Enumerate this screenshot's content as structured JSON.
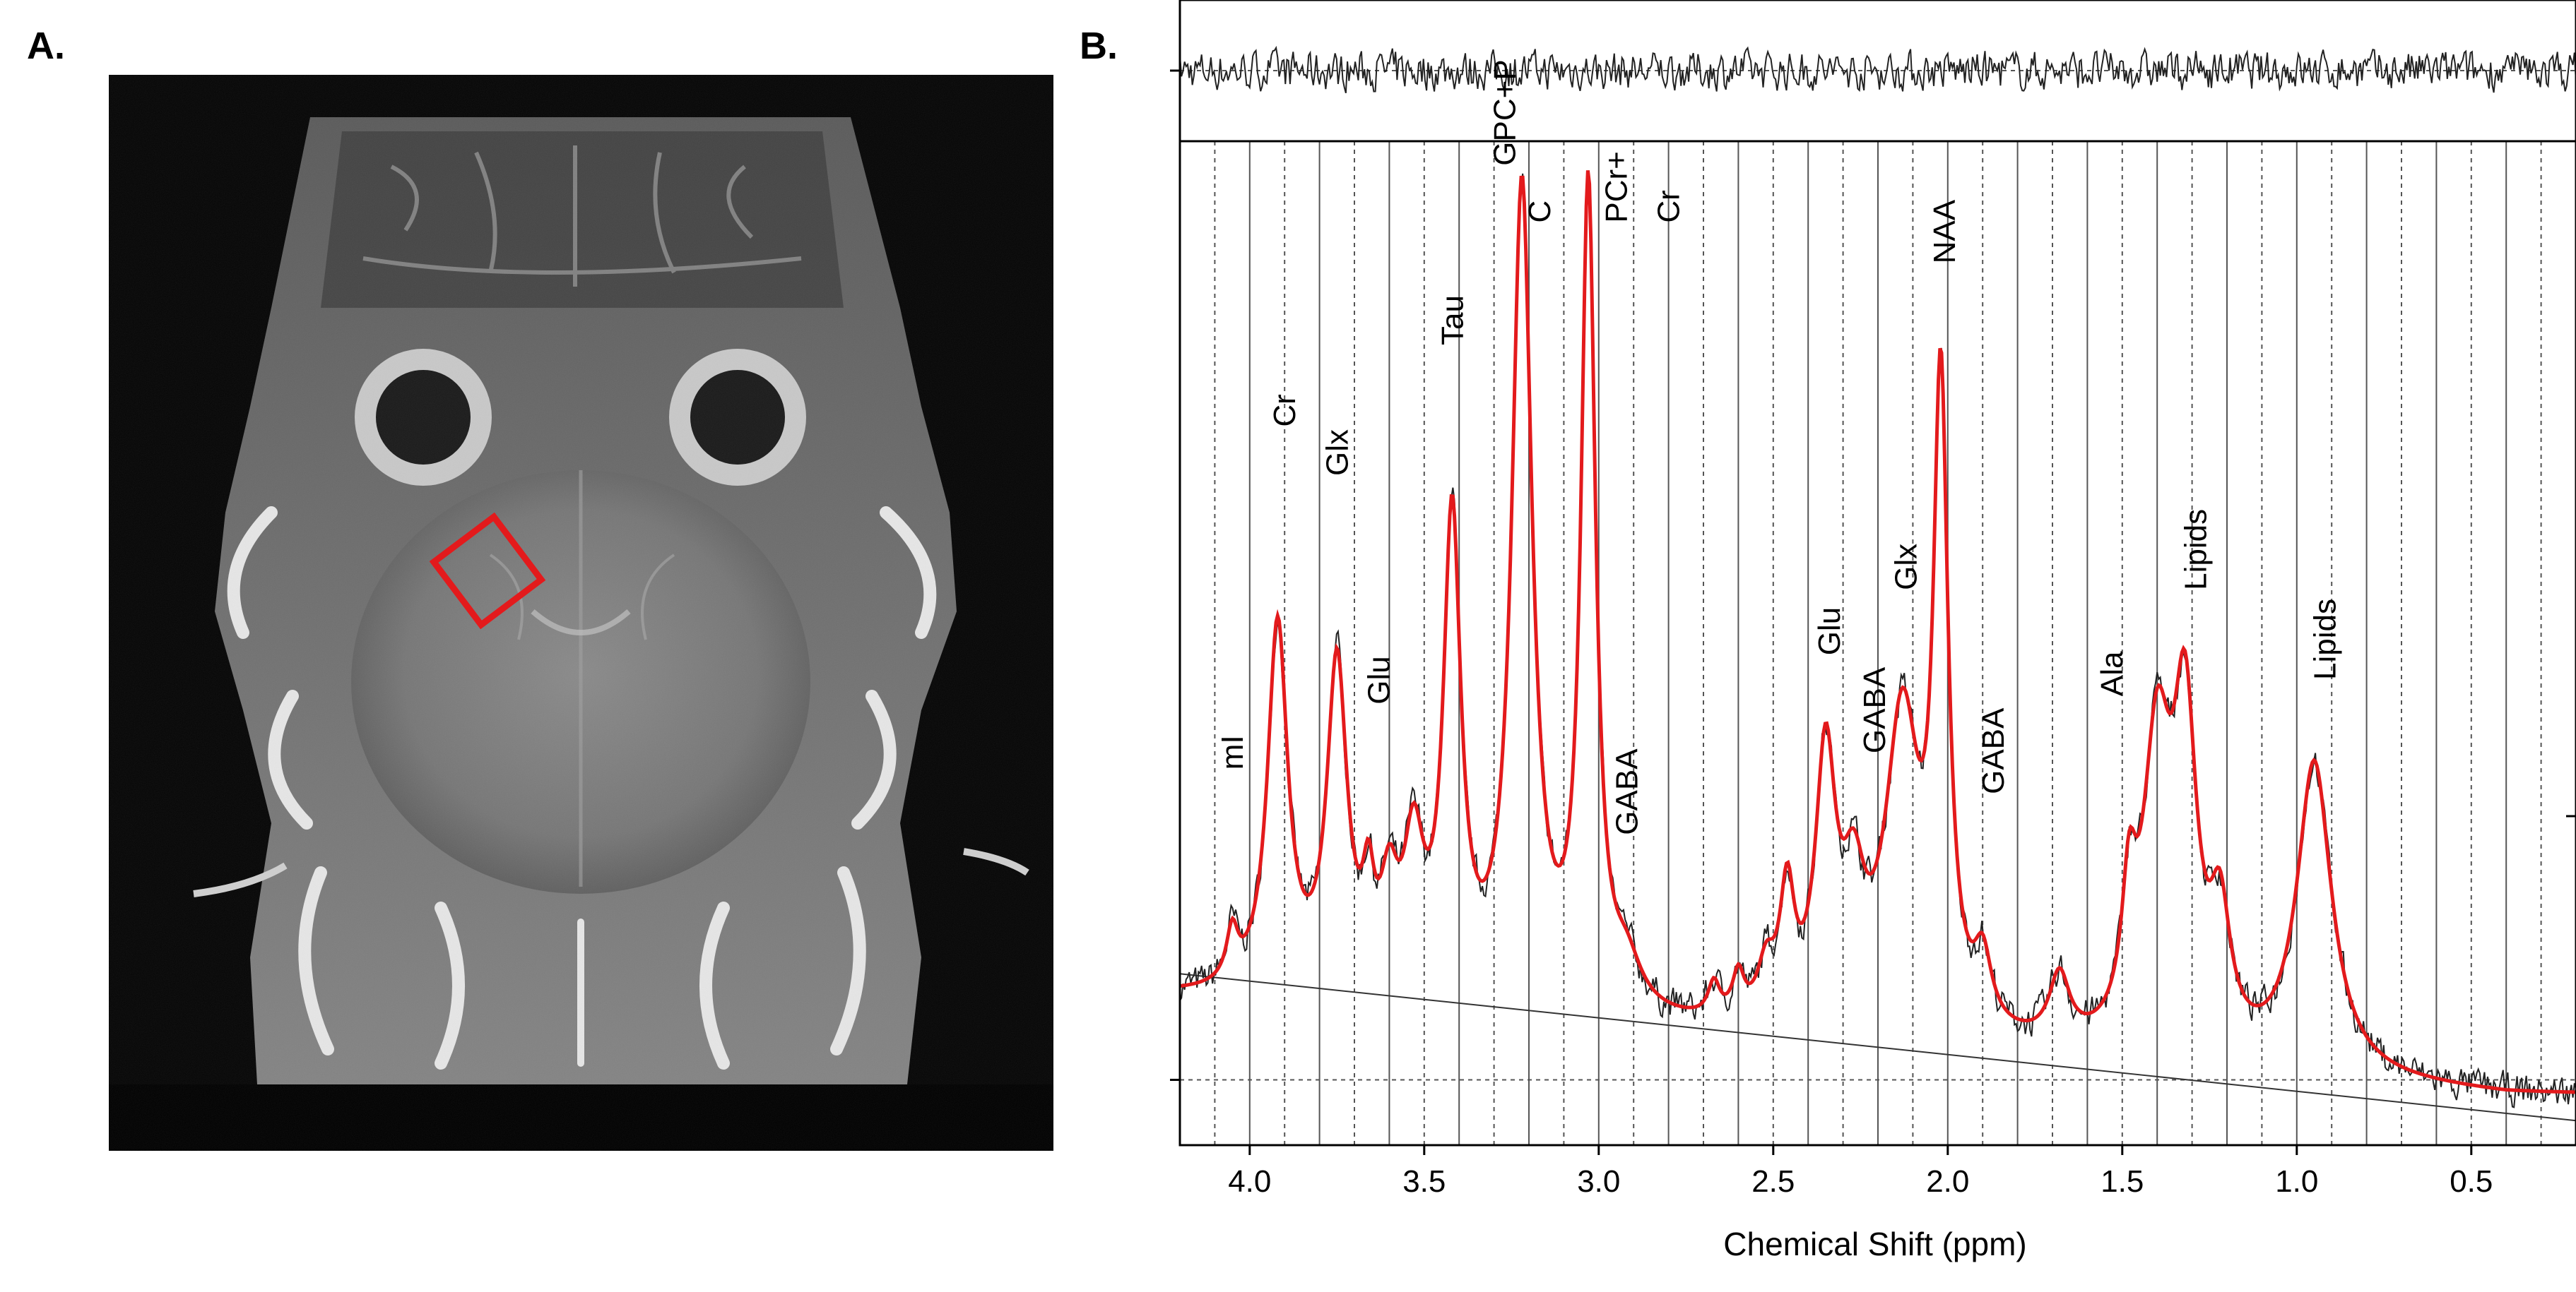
{
  "panels": {
    "a_label": "A.",
    "b_label": "B."
  },
  "mri": {
    "roi_color": "#e31a1c"
  },
  "chart_data": {
    "type": "line",
    "xlabel": "Chemical Shift (ppm)",
    "ylabel": "",
    "xlim": [
      4.2,
      0.2
    ],
    "x_reversed": true,
    "xticks": [
      4.0,
      3.5,
      3.0,
      2.5,
      2.0,
      1.5,
      1.0,
      0.5
    ],
    "xtick_labels": [
      "4.0",
      "3.5",
      "3.0",
      "2.5",
      "2.0",
      "1.5",
      "1.0",
      "0.5"
    ],
    "grid_solid_ppm": [
      4.0,
      3.8,
      3.6,
      3.4,
      3.2,
      3.0,
      2.8,
      2.6,
      2.4,
      2.2,
      2.0,
      1.8,
      1.6,
      1.4,
      1.2,
      1.0,
      0.8,
      0.6,
      0.4,
      0.2
    ],
    "grid_dashed_ppm": [
      4.1,
      3.9,
      3.7,
      3.5,
      3.3,
      3.1,
      2.9,
      2.7,
      2.5,
      2.3,
      2.1,
      1.9,
      1.7,
      1.5,
      1.3,
      1.1,
      0.9,
      0.7,
      0.5,
      0.3
    ],
    "baseline": {
      "start": [
        4.2,
        0.13
      ],
      "end": [
        0.2,
        -0.05
      ]
    },
    "fit": {
      "color": "#e31a1c",
      "offset": 0.12,
      "peaks": [
        {
          "ppm": 4.05,
          "height": 0.06,
          "width": 0.02
        },
        {
          "ppm": 3.92,
          "height": 0.45,
          "width": 0.035
        },
        {
          "ppm": 3.75,
          "height": 0.4,
          "width": 0.035
        },
        {
          "ppm": 3.66,
          "height": 0.1,
          "width": 0.02
        },
        {
          "ppm": 3.6,
          "height": 0.11,
          "width": 0.03
        },
        {
          "ppm": 3.53,
          "height": 0.17,
          "width": 0.035
        },
        {
          "ppm": 3.42,
          "height": 0.58,
          "width": 0.03
        },
        {
          "ppm": 3.22,
          "height": 1.0,
          "width": 0.035
        },
        {
          "ppm": 3.03,
          "height": 1.0,
          "width": 0.025
        },
        {
          "ppm": 2.92,
          "height": 0.05,
          "width": 0.05
        },
        {
          "ppm": 2.67,
          "height": 0.04,
          "width": 0.02
        },
        {
          "ppm": 2.6,
          "height": 0.05,
          "width": 0.02
        },
        {
          "ppm": 2.52,
          "height": 0.06,
          "width": 0.03
        },
        {
          "ppm": 2.46,
          "height": 0.15,
          "width": 0.025
        },
        {
          "ppm": 2.35,
          "height": 0.32,
          "width": 0.035
        },
        {
          "ppm": 2.27,
          "height": 0.14,
          "width": 0.04
        },
        {
          "ppm": 2.13,
          "height": 0.38,
          "width": 0.06
        },
        {
          "ppm": 2.02,
          "height": 0.76,
          "width": 0.025
        },
        {
          "ppm": 1.9,
          "height": 0.08,
          "width": 0.03
        },
        {
          "ppm": 1.68,
          "height": 0.08,
          "width": 0.035
        },
        {
          "ppm": 1.48,
          "height": 0.15,
          "width": 0.025
        },
        {
          "ppm": 1.4,
          "height": 0.36,
          "width": 0.05
        },
        {
          "ppm": 1.32,
          "height": 0.38,
          "width": 0.04
        },
        {
          "ppm": 1.22,
          "height": 0.15,
          "width": 0.035
        },
        {
          "ppm": 0.95,
          "height": 0.38,
          "width": 0.06
        }
      ]
    },
    "data_series": {
      "color": "#222222",
      "noise_amplitude": 0.03
    },
    "residual": {
      "color": "#222222",
      "amplitude": 0.6
    },
    "peak_labels": [
      {
        "text": "mI",
        "ppm": 4.05,
        "level": 0.38
      },
      {
        "text": "Cr",
        "ppm": 3.9,
        "level": 0.8
      },
      {
        "text": "Glx",
        "ppm": 3.75,
        "level": 0.74
      },
      {
        "text": "Glu",
        "ppm": 3.63,
        "level": 0.46
      },
      {
        "text": "Tau",
        "ppm": 3.42,
        "level": 0.9
      },
      {
        "text": "GPC+P",
        "ppm": 3.27,
        "level": 1.12
      },
      {
        "text": "C",
        "ppm": 3.17,
        "level": 1.05
      },
      {
        "text": "PCr+",
        "ppm": 2.95,
        "level": 1.05
      },
      {
        "text": "Cr",
        "ppm": 2.8,
        "level": 1.05
      },
      {
        "text": "GABA",
        "ppm": 2.92,
        "level": 0.3
      },
      {
        "text": "Glu",
        "ppm": 2.34,
        "level": 0.52
      },
      {
        "text": "GABA",
        "ppm": 2.21,
        "level": 0.4
      },
      {
        "text": "Glx",
        "ppm": 2.12,
        "level": 0.6
      },
      {
        "text": "NAA",
        "ppm": 2.01,
        "level": 1.0
      },
      {
        "text": "GABA",
        "ppm": 1.87,
        "level": 0.35
      },
      {
        "text": "Ala",
        "ppm": 1.53,
        "level": 0.47
      },
      {
        "text": "Lipids",
        "ppm": 1.29,
        "level": 0.6
      },
      {
        "text": "Lipids",
        "ppm": 0.92,
        "level": 0.49
      }
    ]
  }
}
